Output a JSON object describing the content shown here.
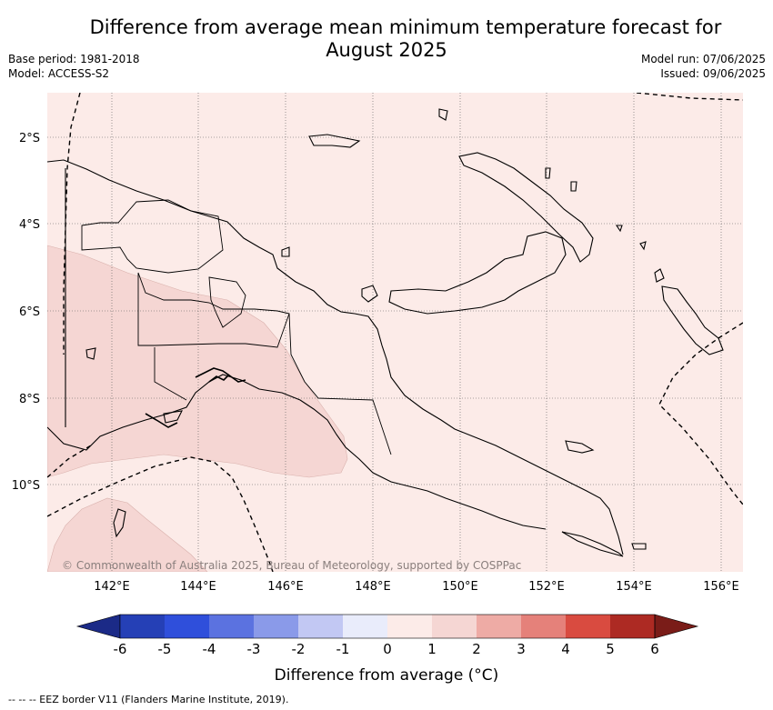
{
  "title_line1": "Difference from average mean minimum temperature forecast for",
  "title_line2": "August 2025",
  "base_period": "Base period: 1981-2018",
  "model": "Model: ACCESS-S2",
  "model_run": "Model run: 07/06/2025",
  "issued": "Issued: 09/06/2025",
  "copyright": "© Commonwealth of Australia 2025, Bureau of Meteorology, supported by COSPPac",
  "lat_labels": [
    "2°S",
    "4°S",
    "6°S",
    "8°S",
    "10°S"
  ],
  "lon_labels": [
    "142°E",
    "144°E",
    "146°E",
    "148°E",
    "150°E",
    "152°E",
    "154°E",
    "156°E"
  ],
  "colorbar": {
    "ticks": [
      "-6",
      "-5",
      "-4",
      "-3",
      "-2",
      "-1",
      "0",
      "1",
      "2",
      "3",
      "4",
      "5",
      "6"
    ],
    "colors": [
      "#1b2a87",
      "#2540b6",
      "#2f4fdb",
      "#5b72e0",
      "#8a9ae9",
      "#c2c8f3",
      "#e9ecfb",
      "#fcebe8",
      "#f5d6d3",
      "#eeaba5",
      "#e5817a",
      "#d94b40",
      "#ad2a23",
      "#7a1c18"
    ],
    "title": "Difference from average (°C)"
  },
  "footer": "--  --  -- EEZ border V11 (Flanders Marine Institute, 2019).",
  "colors": {
    "land_sea_base": "#fcebe8",
    "warm_anomaly_region": "#f5d6d3"
  }
}
